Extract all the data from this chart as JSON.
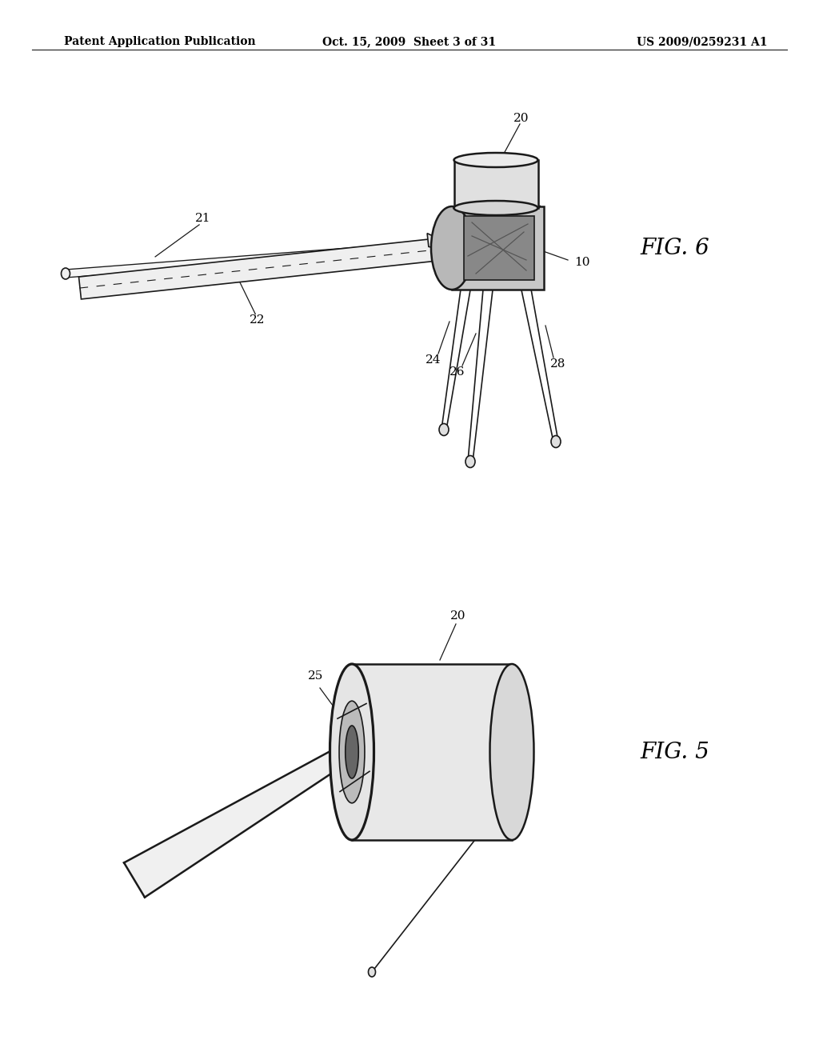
{
  "background_color": "#ffffff",
  "header_left": "Patent Application Publication",
  "header_center": "Oct. 15, 2009  Sheet 3 of 31",
  "header_right": "US 2009/0259231 A1",
  "fig6_label": "FIG. 6",
  "fig5_label": "FIG. 5",
  "line_color": "#1a1a1a",
  "text_color": "#000000",
  "header_font_size": 11,
  "label_font_size": 11,
  "fig_label_font_size": 20
}
